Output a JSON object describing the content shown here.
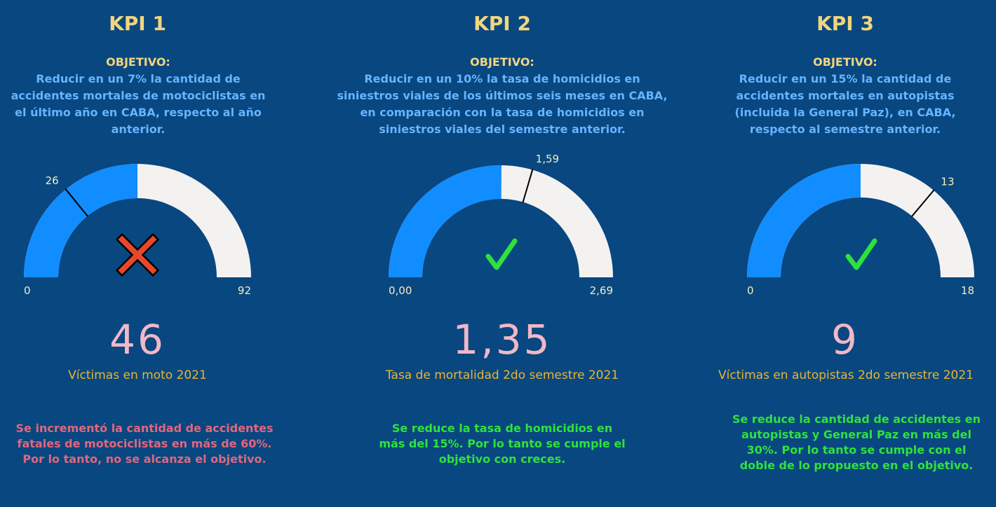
{
  "kpis": [
    {
      "title": "KPI 1",
      "objective_label": "OBJETIVO:",
      "objective_text": "Reducir en un 7% la cantidad de accidentes mortales de motociclistas en el último año en CABA, respecto al año anterior.",
      "gauge": {
        "min": 0,
        "max": 92,
        "value": 46,
        "target": 26,
        "min_label": "0",
        "max_label": "92",
        "target_label": "26",
        "status_icon": "cross-icon"
      },
      "value_label": "46",
      "caption": "Víctimas en moto 2021",
      "conclusion": "Se incrementó la cantidad de accidentes fatales de motociclistas en más de 60%. Por lo tanto, no se alcanza el objetivo.",
      "conclusion_color": "#e2667e"
    },
    {
      "title": "KPI 2",
      "objective_label": "OBJETIVO:",
      "objective_text": "Reducir en un 10% la tasa de homicidios en siniestros viales de los últimos seis meses en CABA, en comparación con la tasa de homicidios en siniestros viales del semestre anterior.",
      "gauge": {
        "min": 0,
        "max": 2.69,
        "value": 1.35,
        "target": 1.59,
        "min_label": "0,00",
        "max_label": "2,69",
        "target_label": "1,59",
        "status_icon": "check-icon"
      },
      "value_label": "1,35",
      "caption": "Tasa de mortalidad 2do semestre 2021",
      "conclusion": "Se reduce la tasa de homicidios en más del 15%. Por lo tanto se cumple el objetivo con creces.",
      "conclusion_color": "#2ee23d"
    },
    {
      "title": "KPI 3",
      "objective_label": "OBJETIVO:",
      "objective_text": "Reducir en un 15% la cantidad de accidentes mortales en autopistas (incluida la General Paz), en CABA, respecto al semestre anterior.",
      "gauge": {
        "min": 0,
        "max": 18,
        "value": 9,
        "target": 13,
        "min_label": "0",
        "max_label": "18",
        "target_label": "13",
        "status_icon": "check-icon"
      },
      "value_label": "9",
      "caption": "Víctimas en autopistas 2do semestre 2021",
      "conclusion": "Se reduce la cantidad de accidentes en autopistas y General Paz en más del 30%. Por lo tanto se cumple con el doble de lo propuesto en el objetivo.",
      "conclusion_color": "#2ee23d"
    }
  ],
  "colors": {
    "background": "#094780",
    "title": "#f2d57e",
    "objective_text": "#65b5ff",
    "gauge_fill": "#118dff",
    "gauge_track": "#f3f2f0",
    "value": "#f1b8c6",
    "caption": "#e9b534",
    "gauge_label": "#f4eec0",
    "cross": "#e8472b",
    "check": "#2ee23d"
  }
}
